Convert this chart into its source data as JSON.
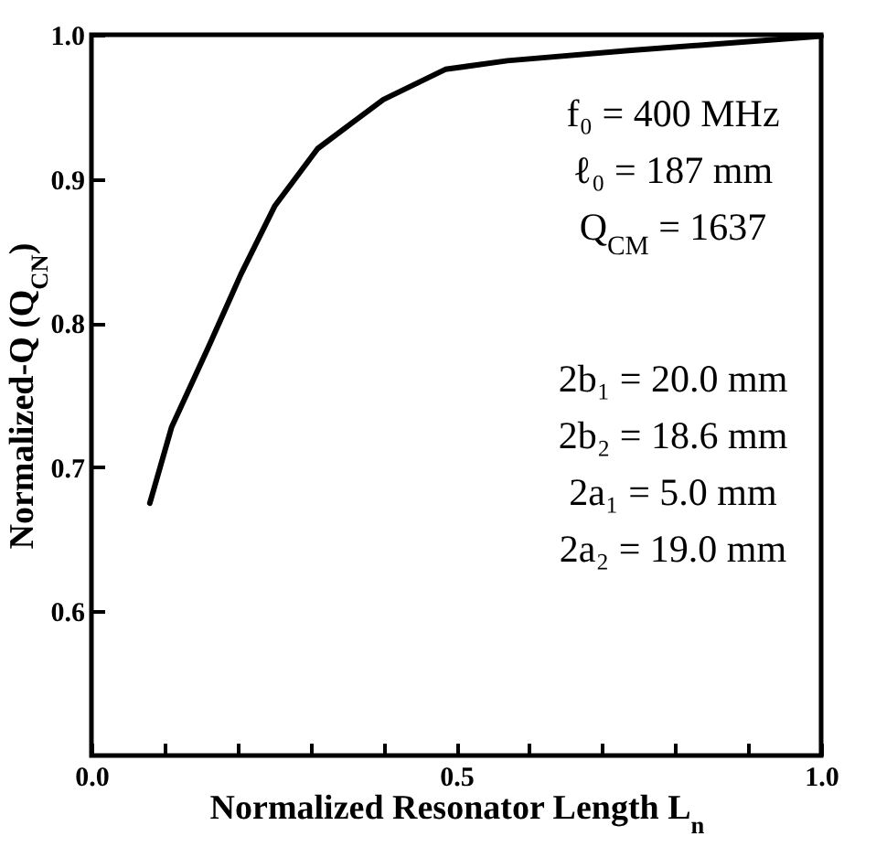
{
  "chart_data": {
    "type": "line",
    "xlabel": "Normalized Resonator Length L$_{n}$",
    "ylabel": "Normalized-Q   (Q$_{CN}$)",
    "x": [
      0.08,
      0.11,
      0.16,
      0.205,
      0.251,
      0.31,
      0.36,
      0.4,
      0.485,
      0.57,
      0.736,
      1.0
    ],
    "series": [
      {
        "color": "#000000",
        "values": [
          0.675,
          0.728,
          0.783,
          0.834,
          0.881,
          0.921,
          0.94,
          0.955,
          0.976,
          0.982,
          0.989,
          0.999
        ]
      }
    ],
    "xlim": [
      0,
      1
    ],
    "ylim": [
      0.5,
      1.0
    ],
    "xticks": [
      {
        "value": 0,
        "label": "0.0"
      },
      {
        "value": 0.1,
        "label": null
      },
      {
        "value": 0.2,
        "label": null
      },
      {
        "value": 0.3,
        "label": null
      },
      {
        "value": 0.4,
        "label": null
      },
      0.5,
      {
        "value": 0.6,
        "label": null
      },
      {
        "value": 0.7,
        "label": null
      },
      {
        "value": 0.8,
        "label": null
      },
      {
        "value": 0.9,
        "label": null
      },
      {
        "value": 1,
        "label": "1.0"
      }
    ],
    "yticks": [
      0.6,
      0.7,
      0.8,
      0.9,
      {
        "value": 1,
        "label": "1.0"
      }
    ],
    "annotations": [
      "f₀ = 400 MHz",
      "ℓ₀ = 187 mm",
      "Q$_{CM}$ = 1637",
      "2b₁ = 20.0 mm",
      "2b₂ = 18.6 mm",
      "2a₁ = 5.0 mm",
      "2a₂ = 19.0 mm"
    ],
    "grid": false,
    "marker": "none",
    "line_style": "solid"
  }
}
